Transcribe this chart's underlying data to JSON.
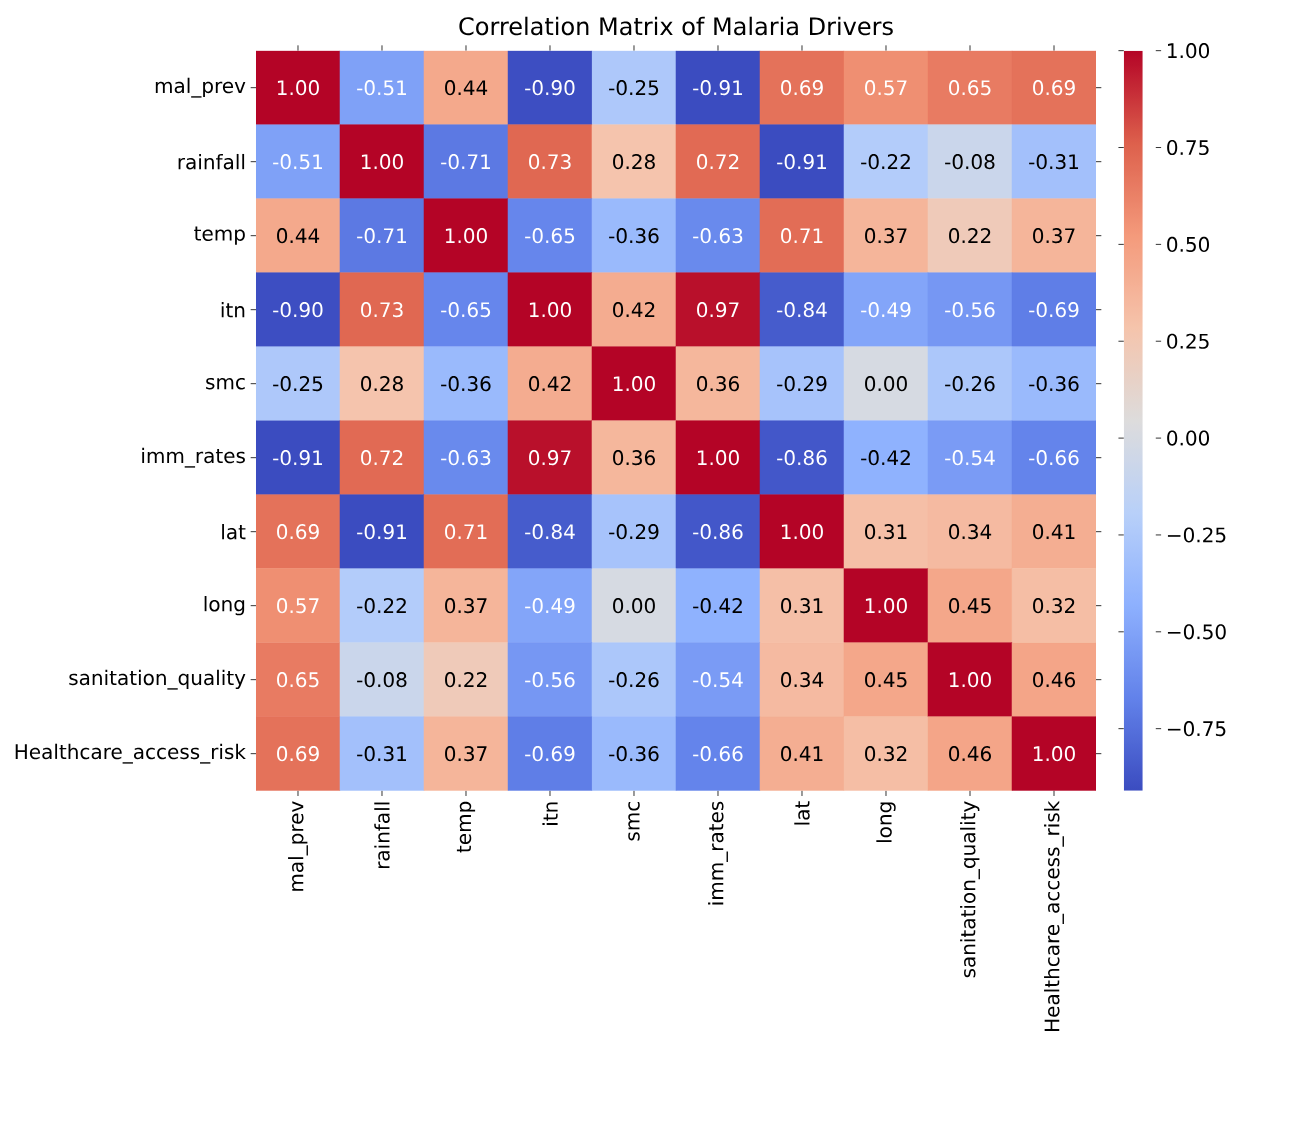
{
  "chart_data": {
    "type": "heatmap",
    "title": "Correlation Matrix of Malaria Drivers",
    "categories": [
      "mal_prev",
      "rainfall",
      "temp",
      "itn",
      "smc",
      "imm_rates",
      "lat",
      "long",
      "sanitation_quality",
      "Healthcare_access_risk"
    ],
    "y_categories": [
      "mal_prev",
      "rainfall",
      "temp",
      "itn",
      "smc",
      "imm_rates",
      "lat",
      "long",
      "sanitation_quality",
      "Healthcare_access_risk"
    ],
    "cells": [
      [
        1.0,
        -0.51,
        0.44,
        -0.9,
        -0.25,
        -0.91,
        0.69,
        0.57,
        0.65,
        0.69
      ],
      [
        -0.51,
        1.0,
        -0.71,
        0.73,
        0.28,
        0.72,
        -0.91,
        -0.22,
        -0.08,
        -0.31
      ],
      [
        0.44,
        -0.71,
        1.0,
        -0.65,
        -0.36,
        -0.63,
        0.71,
        0.37,
        0.22,
        0.37
      ],
      [
        -0.9,
        0.73,
        -0.65,
        1.0,
        0.42,
        0.97,
        -0.84,
        -0.49,
        -0.56,
        -0.69
      ],
      [
        -0.25,
        0.28,
        -0.36,
        0.42,
        1.0,
        0.36,
        -0.29,
        0.0,
        -0.26,
        -0.36
      ],
      [
        -0.91,
        0.72,
        -0.63,
        0.97,
        0.36,
        1.0,
        -0.86,
        -0.42,
        -0.54,
        -0.66
      ],
      [
        0.69,
        -0.91,
        0.71,
        -0.84,
        -0.29,
        -0.86,
        1.0,
        0.31,
        0.34,
        0.41
      ],
      [
        0.57,
        -0.22,
        0.37,
        -0.49,
        0.0,
        -0.42,
        0.31,
        1.0,
        0.45,
        0.32
      ],
      [
        0.65,
        -0.08,
        0.22,
        -0.56,
        -0.26,
        -0.54,
        0.34,
        0.45,
        1.0,
        0.46
      ],
      [
        0.69,
        -0.31,
        0.37,
        -0.69,
        -0.36,
        -0.66,
        0.41,
        0.32,
        0.46,
        1.0
      ]
    ],
    "cell_labels": [
      [
        "1.00",
        "-0.51",
        "0.44",
        "-0.90",
        "-0.25",
        "-0.91",
        "0.69",
        "0.57",
        "0.65",
        "0.69"
      ],
      [
        "-0.51",
        "1.00",
        "-0.71",
        "0.73",
        "0.28",
        "0.72",
        "-0.91",
        "-0.22",
        "-0.08",
        "-0.31"
      ],
      [
        "0.44",
        "-0.71",
        "1.00",
        "-0.65",
        "-0.36",
        "-0.63",
        "0.71",
        "0.37",
        "0.22",
        "0.37"
      ],
      [
        "-0.90",
        "0.73",
        "-0.65",
        "1.00",
        "0.42",
        "0.97",
        "-0.84",
        "-0.49",
        "-0.56",
        "-0.69"
      ],
      [
        "-0.25",
        "0.28",
        "-0.36",
        "0.42",
        "1.00",
        "0.36",
        "-0.29",
        "0.00",
        "-0.26",
        "-0.36"
      ],
      [
        "-0.91",
        "0.72",
        "-0.63",
        "0.97",
        "0.36",
        "1.00",
        "-0.86",
        "-0.42",
        "-0.54",
        "-0.66"
      ],
      [
        "0.69",
        "-0.91",
        "0.71",
        "-0.84",
        "-0.29",
        "-0.86",
        "1.00",
        "0.31",
        "0.34",
        "0.41"
      ],
      [
        "0.57",
        "-0.22",
        "0.37",
        "-0.49",
        "0.00",
        "-0.42",
        "0.31",
        "1.00",
        "0.45",
        "0.32"
      ],
      [
        "0.65",
        "-0.08",
        "0.22",
        "-0.56",
        "-0.26",
        "-0.54",
        "0.34",
        "0.45",
        "1.00",
        "0.46"
      ],
      [
        "0.69",
        "-0.31",
        "0.37",
        "-0.69",
        "-0.36",
        "-0.66",
        "0.41",
        "0.32",
        "0.46",
        "1.00"
      ]
    ],
    "clim": [
      -0.91,
      1.0
    ],
    "cticks": [
      {
        "value": -0.75,
        "label": "−0.75"
      },
      {
        "value": -0.5,
        "label": "−0.50"
      },
      {
        "value": -0.25,
        "label": "−0.25"
      },
      {
        "value": 0.0,
        "label": "0.00"
      },
      {
        "value": 0.25,
        "label": "0.25"
      },
      {
        "value": 0.5,
        "label": "0.50"
      },
      {
        "value": 0.75,
        "label": "0.75"
      },
      {
        "value": 1.0,
        "label": "1.00"
      }
    ]
  }
}
